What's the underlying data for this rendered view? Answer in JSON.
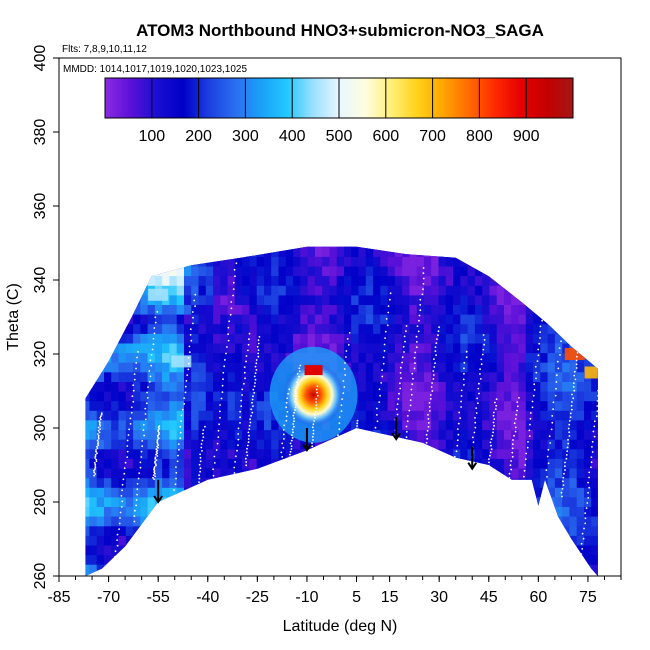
{
  "chart_data": {
    "type": "heatmap",
    "title": "ATOM3 Northbound HNO3+submicron-NO3_SAGA",
    "flights_note": "Flts: 7,8,9,10,11,12",
    "dates_note": "MMDD: 1014,1017,1019,1020,1023,1025",
    "xlabel": "Latitude (deg N)",
    "ylabel": "Theta (C)",
    "xlim": [
      -85,
      85
    ],
    "ylim": [
      260,
      400
    ],
    "x_ticks": [
      -85,
      -70,
      -55,
      -40,
      -25,
      -10,
      5,
      15,
      30,
      45,
      60,
      75
    ],
    "y_ticks": [
      260,
      280,
      300,
      320,
      340,
      360,
      380,
      400
    ],
    "colorbar": {
      "range": [
        0,
        1000
      ],
      "ticks": [
        100,
        200,
        300,
        400,
        500,
        600,
        700,
        800,
        900
      ],
      "colors": [
        "#8a2be2",
        "#5a10d8",
        "#1a0ed0",
        "#0000c8",
        "#1c3fe0",
        "#2a6ef0",
        "#1aa0f8",
        "#22c8ff",
        "#9adfff",
        "#e8f6ff",
        "#fffde0",
        "#fff07a",
        "#ffd21a",
        "#ffa500",
        "#ff6a00",
        "#ff2a00",
        "#e60000",
        "#c40000",
        "#a51515"
      ]
    },
    "upper_envelope": [
      [
        -77,
        308
      ],
      [
        -70,
        318
      ],
      [
        -63,
        330
      ],
      [
        -57,
        341
      ],
      [
        -45,
        344
      ],
      [
        -30,
        346
      ],
      [
        -10,
        349
      ],
      [
        5,
        349
      ],
      [
        20,
        347
      ],
      [
        35,
        346
      ],
      [
        45,
        341
      ],
      [
        55,
        334
      ],
      [
        63,
        328
      ],
      [
        70,
        322
      ],
      [
        78,
        316
      ]
    ],
    "lower_envelope": [
      [
        -77,
        260
      ],
      [
        -72,
        262
      ],
      [
        -65,
        268
      ],
      [
        -55,
        280
      ],
      [
        -40,
        286
      ],
      [
        -25,
        289
      ],
      [
        -10,
        294
      ],
      [
        0,
        298
      ],
      [
        5,
        300
      ],
      [
        15,
        298
      ],
      [
        25,
        296
      ],
      [
        35,
        292
      ],
      [
        45,
        290
      ],
      [
        52,
        286
      ],
      [
        58,
        286
      ],
      [
        60,
        279
      ],
      [
        62,
        286
      ],
      [
        66,
        276
      ],
      [
        70,
        270
      ],
      [
        76,
        262
      ],
      [
        78,
        260
      ]
    ],
    "hotspot": {
      "center_lat": -8,
      "center_theta": 309,
      "peak_value": 900
    },
    "highlights": [
      {
        "lat": -55,
        "theta": 336,
        "value": 450
      },
      {
        "lat": -48,
        "theta": 318,
        "value": 450
      },
      {
        "lat": 71,
        "theta": 320,
        "value": 800
      },
      {
        "lat": 77,
        "theta": 315,
        "value": 700
      }
    ],
    "arrows": [
      {
        "lat": -55,
        "theta_top": 286,
        "theta_bottom": 280
      },
      {
        "lat": -10,
        "theta_top": 300,
        "theta_bottom": 294
      },
      {
        "lat": 17,
        "theta_top": 303,
        "theta_bottom": 297
      },
      {
        "lat": 40,
        "theta_top": 295,
        "theta_bottom": 289
      }
    ]
  }
}
